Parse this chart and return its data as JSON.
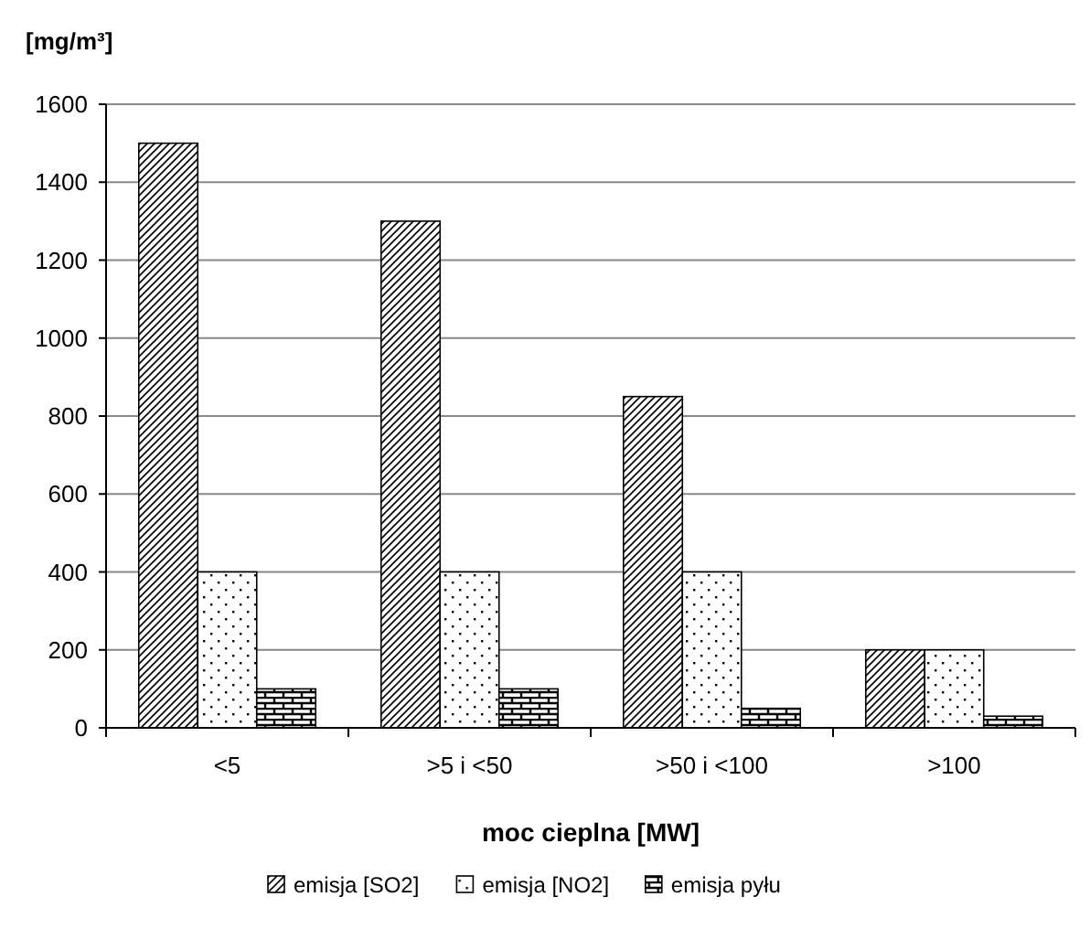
{
  "chart_data": {
    "type": "bar",
    "ylabel": "[mg/m³]",
    "xlabel": "moc cieplna [MW]",
    "categories": [
      "<5",
      ">5 i <50",
      ">50 i <100",
      ">100"
    ],
    "series": [
      {
        "name": "emisja [SO2]",
        "color": "#000000",
        "values": [
          1500,
          1300,
          850,
          200
        ]
      },
      {
        "name": "emisja [NO2]",
        "color": "#000000",
        "values": [
          400,
          400,
          400,
          200
        ]
      },
      {
        "name": "emisja pyłu",
        "color": "#000000",
        "values": [
          100,
          100,
          50,
          30
        ]
      }
    ],
    "ylim": [
      0,
      1600
    ],
    "yticks": [
      0,
      200,
      400,
      600,
      800,
      1000,
      1200,
      1400,
      1600
    ],
    "grid": "y",
    "legend": "bottom"
  }
}
